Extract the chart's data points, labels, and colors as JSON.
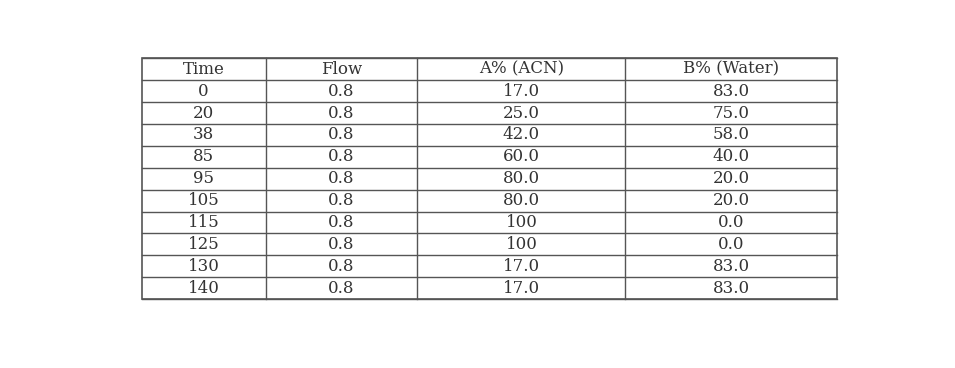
{
  "headers": [
    "Time",
    "Flow",
    "A% (ACN)",
    "B% (Water)"
  ],
  "rows": [
    [
      "0",
      "0.8",
      "17.0",
      "83.0"
    ],
    [
      "20",
      "0.8",
      "25.0",
      "75.0"
    ],
    [
      "38",
      "0.8",
      "42.0",
      "58.0"
    ],
    [
      "85",
      "0.8",
      "60.0",
      "40.0"
    ],
    [
      "95",
      "0.8",
      "80.0",
      "20.0"
    ],
    [
      "105",
      "0.8",
      "80.0",
      "20.0"
    ],
    [
      "115",
      "0.8",
      "100",
      "0.0"
    ],
    [
      "125",
      "0.8",
      "100",
      "0.0"
    ],
    [
      "130",
      "0.8",
      "17.0",
      "83.0"
    ],
    [
      "140",
      "0.8",
      "17.0",
      "83.0"
    ]
  ],
  "background_color": "#ffffff",
  "text_color": "#333333",
  "border_color": "#555555",
  "font_size": 12,
  "header_font_size": 12,
  "fig_width": 9.55,
  "fig_height": 3.68
}
